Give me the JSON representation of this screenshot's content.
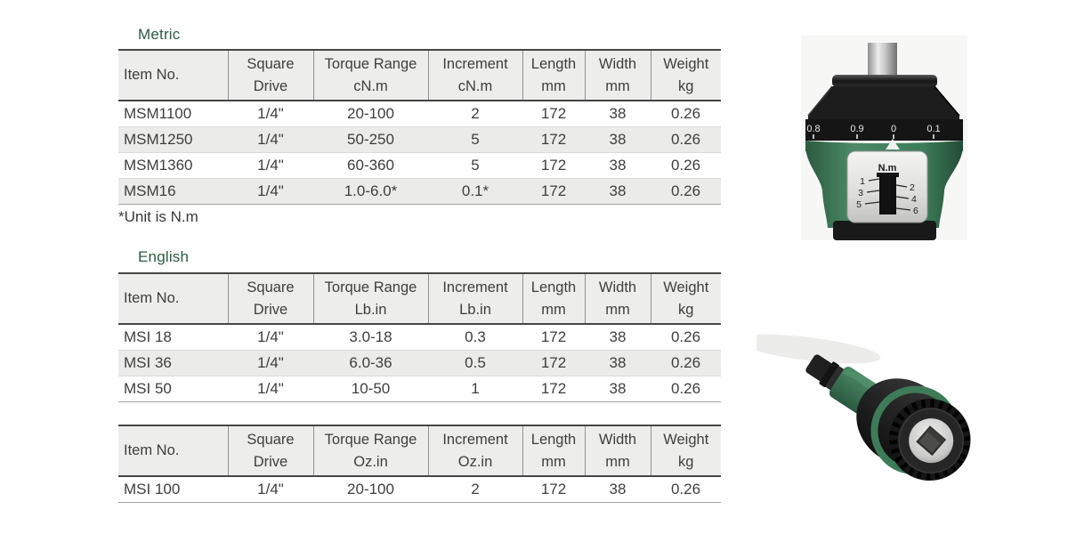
{
  "colors": {
    "heading_green": "#2a5c41",
    "body_green": "#3d7c5a",
    "header_bg": "#ededec",
    "alt_row_bg": "#ebebea"
  },
  "metric": {
    "heading": "Metric",
    "footnote": "*Unit is N.m"
  },
  "english": {
    "heading": "English"
  },
  "tables": {
    "metric": {
      "headers": [
        [
          "Item No.",
          ""
        ],
        [
          "Square",
          "Drive"
        ],
        [
          "Torque Range",
          "cN.m"
        ],
        [
          "Increment",
          "cN.m"
        ],
        [
          "Length",
          "mm"
        ],
        [
          "Width",
          "mm"
        ],
        [
          "Weight",
          "kg"
        ]
      ],
      "rows": [
        [
          "MSM1100",
          "1/4\"",
          "20-100",
          "2",
          "172",
          "38",
          "0.26"
        ],
        [
          "MSM1250",
          "1/4\"",
          "50-250",
          "5",
          "172",
          "38",
          "0.26"
        ],
        [
          "MSM1360",
          "1/4\"",
          "60-360",
          "5",
          "172",
          "38",
          "0.26"
        ],
        [
          "MSM16",
          "1/4\"",
          "1.0-6.0*",
          "0.1*",
          "172",
          "38",
          "0.26"
        ]
      ]
    },
    "english": {
      "headers": [
        [
          "Item No.",
          ""
        ],
        [
          "Square",
          "Drive"
        ],
        [
          "Torque Range",
          "Lb.in"
        ],
        [
          "Increment",
          "Lb.in"
        ],
        [
          "Length",
          "mm"
        ],
        [
          "Width",
          "mm"
        ],
        [
          "Weight",
          "kg"
        ]
      ],
      "rows": [
        [
          "MSI 18",
          "1/4\"",
          "3.0-18",
          "0.3",
          "172",
          "38",
          "0.26"
        ],
        [
          "MSI 36",
          "1/4\"",
          "6.0-36",
          "0.5",
          "172",
          "38",
          "0.26"
        ],
        [
          "MSI 50",
          "1/4\"",
          "10-50",
          "1",
          "172",
          "38",
          "0.26"
        ]
      ]
    },
    "ounce": {
      "headers": [
        [
          "Item No.",
          ""
        ],
        [
          "Square",
          "Drive"
        ],
        [
          "Torque Range",
          "Oz.in"
        ],
        [
          "Increment",
          "Oz.in"
        ],
        [
          "Length",
          "mm"
        ],
        [
          "Width",
          "mm"
        ],
        [
          "Weight",
          "kg"
        ]
      ],
      "rows": [
        [
          "MSI 100",
          "1/4\"",
          "20-100",
          "2",
          "172",
          "38",
          "0.26"
        ]
      ]
    }
  },
  "photos": {
    "top": {
      "dial_labels": [
        "0.8",
        "0.9",
        "0",
        "0.1"
      ],
      "unit_label": "N.m",
      "scale_left": [
        "1",
        "3",
        "5"
      ],
      "scale_right": [
        "2",
        "4",
        "6"
      ]
    }
  }
}
